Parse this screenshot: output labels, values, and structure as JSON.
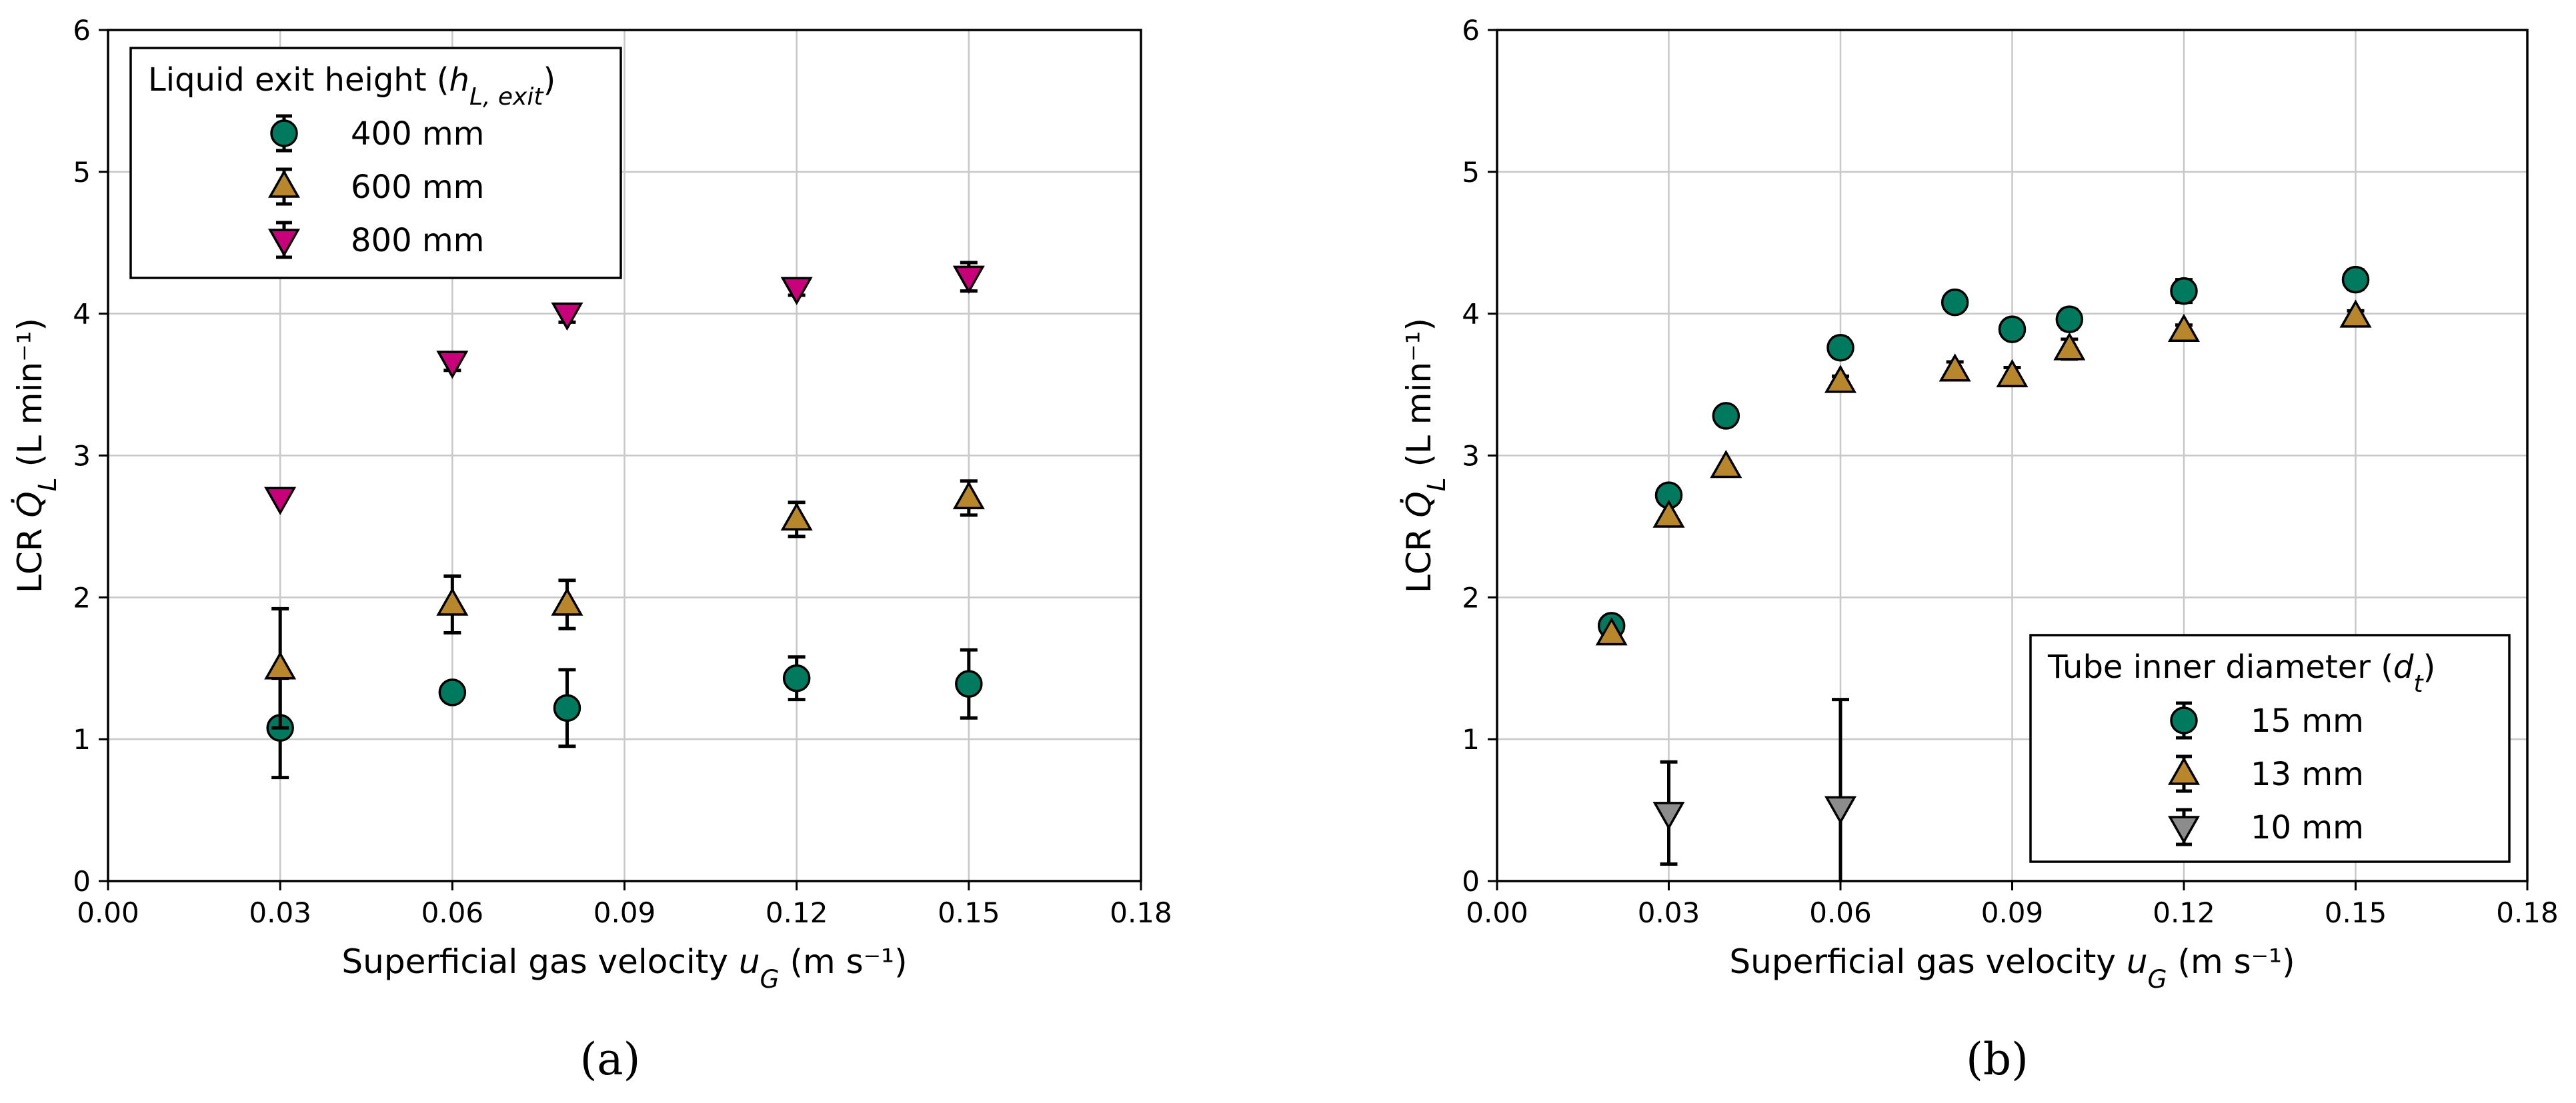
{
  "chart_data": [
    {
      "type": "scatter",
      "panel_label": "(a)",
      "xlabel": "Superficial gas velocity u_G (m s⁻¹)",
      "ylabel": "LCR Q̇_L (L min⁻¹)",
      "xlim": [
        0,
        0.18
      ],
      "ylim": [
        0,
        6
      ],
      "xticks": [
        "0.00",
        "0.03",
        "0.06",
        "0.09",
        "0.12",
        "0.15",
        "0.18"
      ],
      "yticks": [
        "0",
        "1",
        "2",
        "3",
        "4",
        "5",
        "6"
      ],
      "grid": true,
      "legend_position": "top-left",
      "legend_title": "Liquid exit height (h_L,exit)",
      "series": [
        {
          "name": "400 mm",
          "marker": "circle",
          "color": "#007a5e",
          "x": [
            0.03,
            0.06,
            0.08,
            0.12,
            0.15
          ],
          "y": [
            1.08,
            1.33,
            1.22,
            1.43,
            1.39
          ],
          "err": [
            0.35,
            0.0,
            0.27,
            0.15,
            0.24
          ]
        },
        {
          "name": "600 mm",
          "marker": "triangle-up",
          "color": "#b8862b",
          "x": [
            0.03,
            0.06,
            0.08,
            0.12,
            0.15
          ],
          "y": [
            1.5,
            1.95,
            1.95,
            2.55,
            2.7
          ],
          "err": [
            0.42,
            0.2,
            0.17,
            0.12,
            0.12
          ]
        },
        {
          "name": "800 mm",
          "marker": "triangle-down",
          "color": "#c8007a",
          "x": [
            0.03,
            0.06,
            0.08,
            0.12,
            0.15
          ],
          "y": [
            2.7,
            3.66,
            4.0,
            4.18,
            4.26
          ],
          "err": [
            0.0,
            0.06,
            0.06,
            0.05,
            0.1
          ]
        }
      ]
    },
    {
      "type": "scatter",
      "panel_label": "(b)",
      "xlabel": "Superficial gas velocity u_G (m s⁻¹)",
      "ylabel": "LCR Q̇_L (L min⁻¹)",
      "xlim": [
        0,
        0.18
      ],
      "ylim": [
        0,
        6
      ],
      "xticks": [
        "0.00",
        "0.03",
        "0.06",
        "0.09",
        "0.12",
        "0.15",
        "0.18"
      ],
      "yticks": [
        "0",
        "1",
        "2",
        "3",
        "4",
        "5",
        "6"
      ],
      "grid": true,
      "legend_position": "bottom-right",
      "legend_title": "Tube inner diameter (d_t)",
      "series": [
        {
          "name": "15 mm",
          "marker": "circle",
          "color": "#007a5e",
          "x": [
            0.02,
            0.03,
            0.04,
            0.06,
            0.08,
            0.09,
            0.1,
            0.12,
            0.15
          ],
          "y": [
            1.8,
            2.72,
            3.28,
            3.76,
            4.08,
            3.89,
            3.96,
            4.16,
            4.24
          ],
          "err": [
            0.0,
            0.0,
            0.0,
            0.07,
            0.06,
            0.06,
            0.07,
            0.08,
            0.07
          ]
        },
        {
          "name": "13 mm",
          "marker": "triangle-up",
          "color": "#b8862b",
          "x": [
            0.02,
            0.03,
            0.04,
            0.06,
            0.08,
            0.09,
            0.1,
            0.12,
            0.15
          ],
          "y": [
            1.74,
            2.57,
            2.92,
            3.52,
            3.6,
            3.56,
            3.75,
            3.88,
            3.98
          ],
          "err": [
            0.0,
            0.0,
            0.0,
            0.04,
            0.06,
            0.06,
            0.07,
            0.04,
            0.04
          ]
        },
        {
          "name": "10 mm",
          "marker": "triangle-down",
          "color": "#8c8c8c",
          "x": [
            0.03,
            0.06
          ],
          "y": [
            0.48,
            0.52
          ],
          "err": [
            0.36,
            0.76
          ]
        }
      ]
    }
  ]
}
